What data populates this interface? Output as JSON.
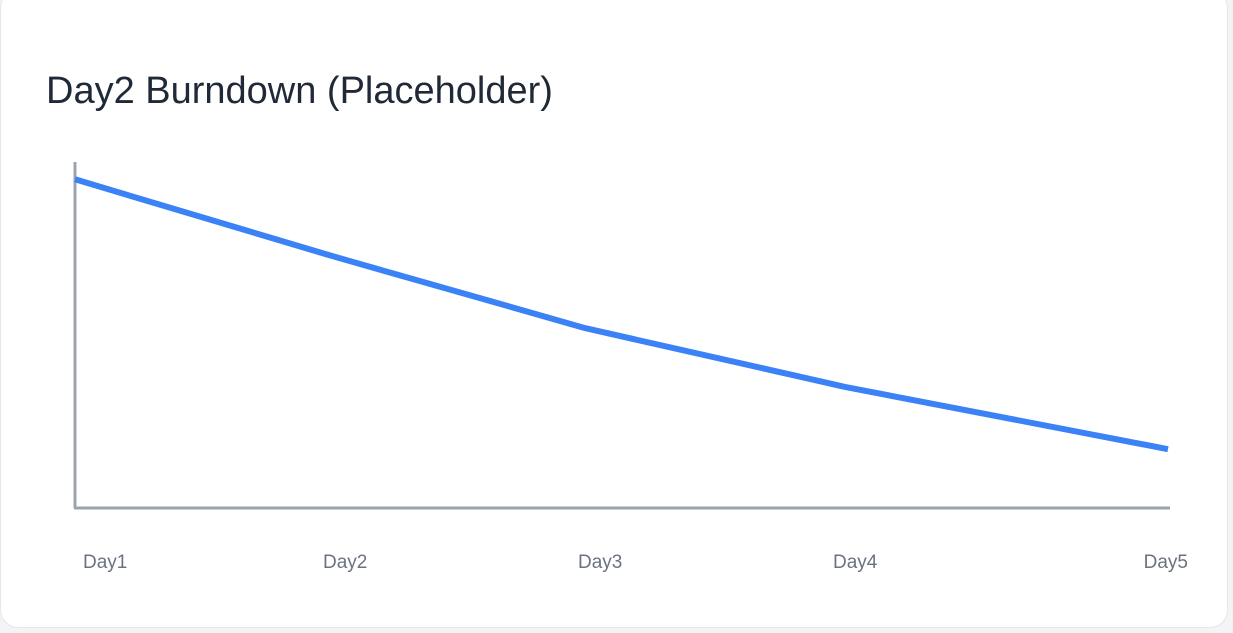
{
  "chart_data": {
    "type": "line",
    "title": "Day2 Burndown (Placeholder)",
    "categories": [
      "Day1",
      "Day2",
      "Day3",
      "Day4",
      "Day5"
    ],
    "series": [
      {
        "color": "#3b82f6",
        "values": [
          95,
          73,
          52,
          35,
          17
        ]
      }
    ],
    "ylim": [
      0,
      100
    ]
  }
}
